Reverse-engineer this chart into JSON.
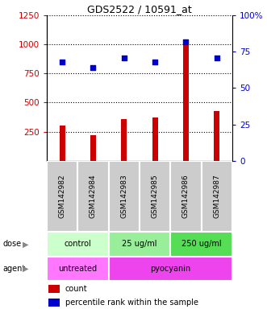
{
  "title": "GDS2522 / 10591_at",
  "samples": [
    "GSM142982",
    "GSM142984",
    "GSM142983",
    "GSM142985",
    "GSM142986",
    "GSM142987"
  ],
  "counts": [
    300,
    220,
    355,
    370,
    1000,
    430
  ],
  "percentiles": [
    68,
    64,
    71,
    68,
    82,
    71
  ],
  "left_ylim": [
    0,
    1250
  ],
  "right_ylim": [
    0,
    100
  ],
  "left_yticks": [
    250,
    500,
    750,
    1000,
    1250
  ],
  "right_yticks": [
    0,
    25,
    50,
    75,
    100
  ],
  "bar_color": "#cc0000",
  "dot_color": "#0000cc",
  "dot_size": 20,
  "bar_width": 0.18,
  "dose_groups": [
    {
      "label": "control",
      "span": [
        0,
        2
      ],
      "color": "#ccffcc"
    },
    {
      "label": "25 ug/ml",
      "span": [
        2,
        4
      ],
      "color": "#99ee99"
    },
    {
      "label": "250 ug/ml",
      "span": [
        4,
        6
      ],
      "color": "#55dd55"
    }
  ],
  "agent_groups": [
    {
      "label": "untreated",
      "span": [
        0,
        2
      ],
      "color": "#ff77ff"
    },
    {
      "label": "pyocyanin",
      "span": [
        2,
        6
      ],
      "color": "#ee44ee"
    }
  ],
  "dose_label": "dose",
  "agent_label": "agent",
  "legend_count_label": "count",
  "legend_pct_label": "percentile rank within the sample",
  "sample_box_color": "#cccccc",
  "left_tick_color": "#cc0000",
  "right_tick_color": "#0000cc",
  "fig_w": 3.31,
  "fig_h": 3.84,
  "dpi": 100
}
